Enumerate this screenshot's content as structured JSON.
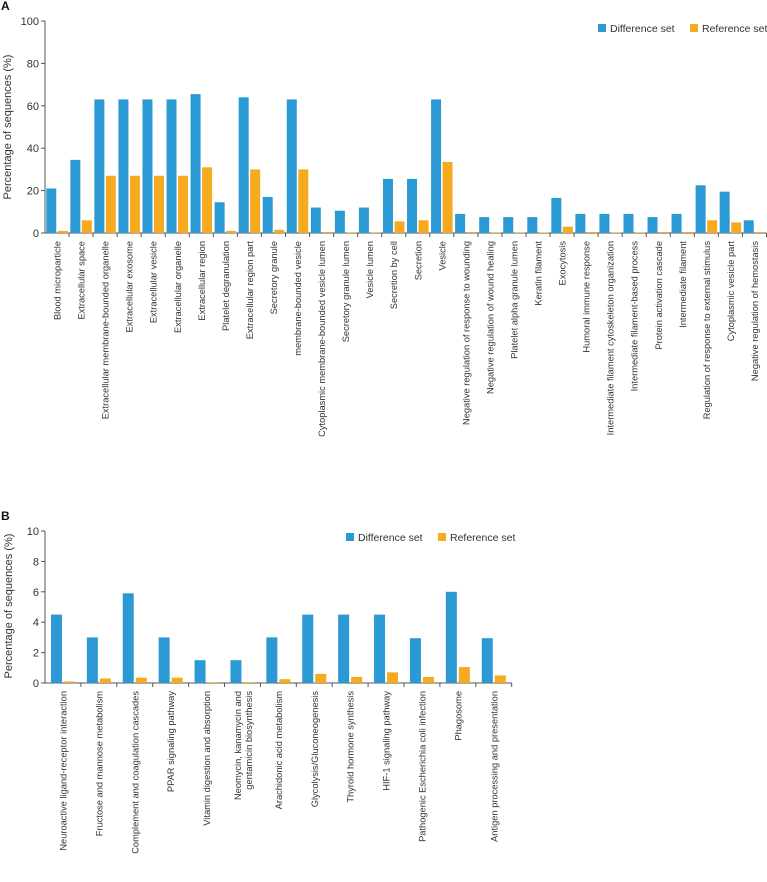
{
  "colors": {
    "difference": "#2b9ad4",
    "reference": "#f5aa1f",
    "axis": "#555555"
  },
  "chart_data": [
    {
      "panel": "A",
      "type": "bar",
      "title": "",
      "xlabel": "",
      "ylabel": "Percentage of sequences (%)",
      "ylim": [
        0,
        100
      ],
      "yticks": [
        "0",
        "20",
        "40",
        "60",
        "80",
        "100"
      ],
      "legend_position": "top-right",
      "categories": [
        "Blood microparticle",
        "Extracellular space",
        "Extracellular membrane-bounded organelle",
        "Extracellular exosome",
        "Extracellular vesicle",
        "Extracellular organelle",
        "Extracellular region",
        "Platelet degranulation",
        "Extracellular region part",
        "Secretory granule",
        "membrane-bounded vesicle",
        "Cytoplasmic membrane-bounded vesicle lumen",
        "Secretory granule lumen",
        "Vesicle lumen",
        "Secretion by cell",
        "Secretion",
        "Vesicle",
        "Negative regulation of response to wounding",
        "Negative regulation of wound healing",
        "Platelet alpha granule lumen",
        "Keratin filament",
        "Exocytosis",
        "Humoral immune response",
        "Intermediate filament cytoskeleton organization",
        "Intermediate filament-based process",
        "Protein activation cascade",
        "Intermediate filament",
        "Regulation of response to external stimulus",
        "Cytoplasmic vesicle part",
        "Negative regulation of hemostasis"
      ],
      "series": [
        {
          "name": "Difference set",
          "values": [
            21,
            34.5,
            63,
            63,
            63,
            63,
            65.5,
            14.5,
            64,
            17,
            63,
            12,
            10.5,
            12,
            25.5,
            25.5,
            63,
            9,
            7.5,
            7.5,
            7.5,
            16.5,
            9,
            9,
            9,
            7.5,
            9,
            22.5,
            19.5,
            6
          ]
        },
        {
          "name": "Reference set",
          "values": [
            1,
            6,
            27,
            27,
            27,
            27,
            31,
            1,
            30,
            1.5,
            30,
            0.5,
            0.3,
            0.3,
            5.5,
            6,
            33.5,
            0.5,
            0.3,
            0.3,
            0.2,
            3,
            0.5,
            0.3,
            0.3,
            0.5,
            0.5,
            6,
            5,
            0.5
          ]
        }
      ]
    },
    {
      "panel": "B",
      "type": "bar",
      "title": "",
      "xlabel": "",
      "ylabel": "Percentage of sequences (%)",
      "ylim": [
        0,
        10
      ],
      "yticks": [
        "0",
        "2",
        "4",
        "6",
        "8",
        "10"
      ],
      "legend_position": "top-right",
      "categories": [
        "Neuroactive ligand-receptor interaction",
        "Fructose and mannose metabolism",
        "Complement and coagulation cascades",
        "PPAR signaling pathway",
        "Vitamin digestion and absorption",
        "Neomycin, kanamycin and\ngentamicin biosynthesis",
        "Arachidonic acid metabolism",
        "Glycolysis/Gluconeogenesis",
        "Thyroid hormone synthesis",
        "HIF-1 signaling pathway",
        "Pathogenic Escherichia coli infection",
        "Phagosome",
        "Antigen processing and presentation"
      ],
      "series": [
        {
          "name": "Difference set",
          "values": [
            4.5,
            3,
            5.9,
            3,
            1.5,
            1.5,
            3,
            4.5,
            4.5,
            4.5,
            2.95,
            6,
            2.95
          ]
        },
        {
          "name": "Reference set",
          "values": [
            0.1,
            0.3,
            0.35,
            0.35,
            0.05,
            0.05,
            0.25,
            0.6,
            0.4,
            0.7,
            0.4,
            1.05,
            0.5
          ]
        }
      ]
    }
  ]
}
